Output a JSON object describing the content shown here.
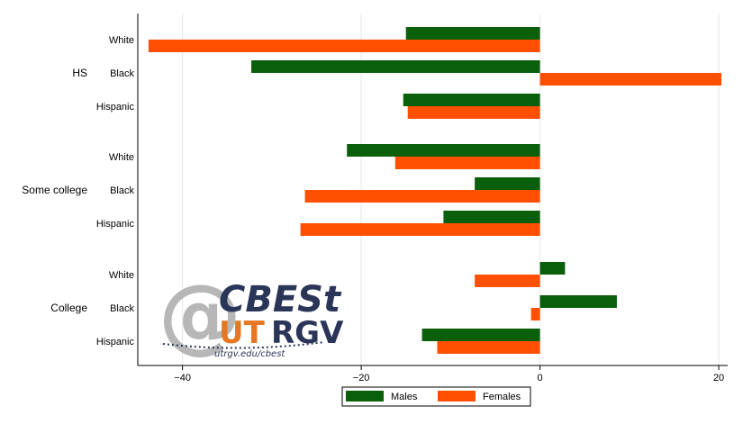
{
  "chart_data": {
    "type": "bar",
    "orientation": "horizontal",
    "groups": [
      {
        "label": "HS",
        "categories": [
          "White",
          "Black",
          "Hispanic"
        ]
      },
      {
        "label": "Some college",
        "categories": [
          "White",
          "Black",
          "Hispanic"
        ]
      },
      {
        "label": "College",
        "categories": [
          "White",
          "Black",
          "Hispanic"
        ]
      }
    ],
    "series": [
      {
        "name": "Males",
        "color": "#0a5f0a",
        "values": [
          -15,
          -32.3,
          -15.3,
          -21.6,
          -7.3,
          -10.8,
          2.8,
          8.6,
          -13.2
        ]
      },
      {
        "name": "Females",
        "color": "#ff4f00",
        "values": [
          -43.8,
          20.3,
          -14.8,
          -16.2,
          -26.3,
          -26.8,
          -7.3,
          -1.0,
          -11.5
        ]
      }
    ],
    "xlim": [
      -45,
      21
    ],
    "xticks": [
      {
        "value": -40,
        "label": "−40"
      },
      {
        "value": -20,
        "label": "−20"
      },
      {
        "value": 0,
        "label": "0"
      },
      {
        "value": 20,
        "label": "20"
      }
    ],
    "grid": "vertical",
    "legend_position": "bottom"
  },
  "logo": {
    "at": "@",
    "name": "CBESt",
    "ut": "UT",
    "rgv": "RGV",
    "url": "utrgv.edu/cbest"
  }
}
